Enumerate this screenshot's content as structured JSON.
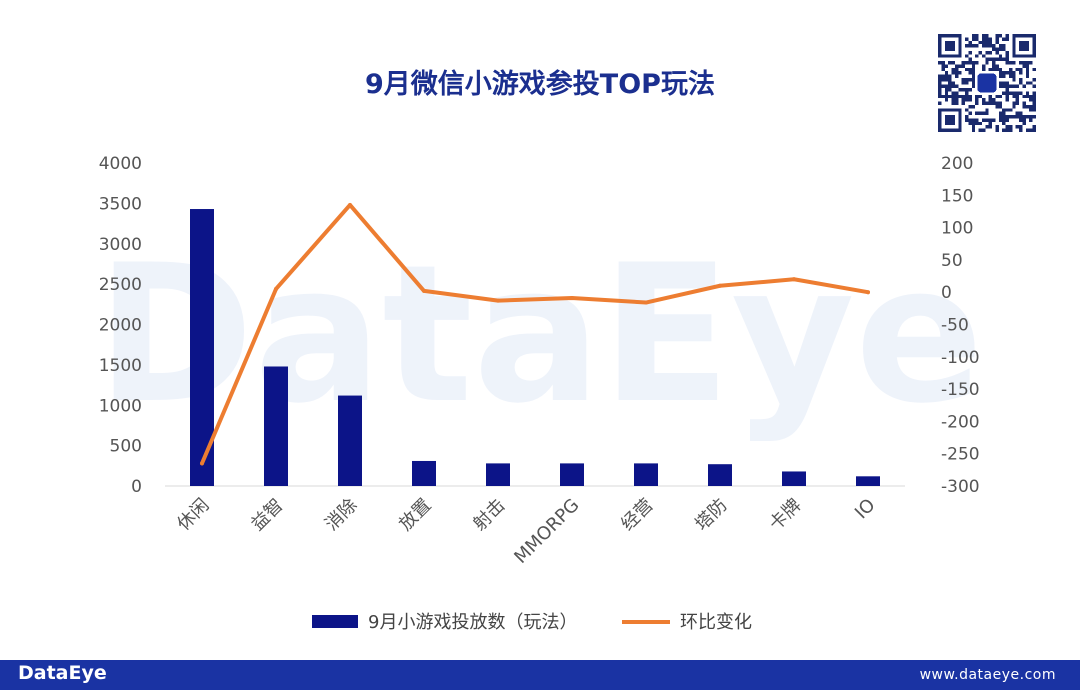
{
  "watermark": "DataEye",
  "chart_data": {
    "type": "bar",
    "title": "9月微信小游戏参投TOP玩法",
    "categories": [
      "休闲",
      "益智",
      "消除",
      "放置",
      "射击",
      "MMORPG",
      "经营",
      "塔防",
      "卡牌",
      "IO"
    ],
    "series": [
      {
        "name": "9月小游戏投放数（玩法）",
        "type": "bar",
        "axis": "left",
        "color": "#0c1488",
        "values": [
          3430,
          1480,
          1120,
          310,
          280,
          280,
          280,
          270,
          180,
          120
        ]
      },
      {
        "name": "环比变化",
        "type": "line",
        "axis": "right",
        "color": "#ed7d31",
        "values": [
          -265,
          5,
          135,
          2,
          -13,
          -9,
          -16,
          10,
          20,
          0
        ]
      }
    ],
    "y_left": {
      "ylim": [
        0,
        4000
      ],
      "ticks": [
        "0",
        "500",
        "1000",
        "1500",
        "2000",
        "2500",
        "3000",
        "3500",
        "4000"
      ]
    },
    "y_right": {
      "ylim": [
        -300,
        200
      ],
      "ticks": [
        "-300",
        "-250",
        "-200",
        "-150",
        "-100",
        "-50",
        "0",
        "50",
        "100",
        "150",
        "200"
      ]
    },
    "legend": "bottom",
    "grid": false
  },
  "footer": {
    "logo": "DataEye",
    "url": "www.dataeye.com"
  }
}
